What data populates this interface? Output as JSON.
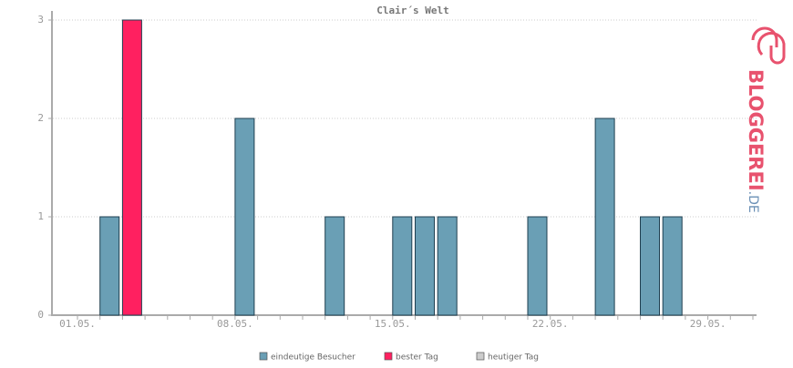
{
  "chart_data": {
    "type": "bar",
    "title": "Clair´s Welt",
    "categories": [
      "01.05.",
      null,
      null,
      null,
      null,
      null,
      null,
      "08.05.",
      null,
      null,
      null,
      null,
      null,
      null,
      "15.05.",
      null,
      null,
      null,
      null,
      null,
      null,
      "22.05.",
      null,
      null,
      null,
      null,
      null,
      null,
      "29.05.",
      null,
      null
    ],
    "series": [
      {
        "name": "eindeutige Besucher",
        "color": "#6a9fb5",
        "values": [
          0,
          1,
          null,
          0,
          0,
          0,
          0,
          2,
          0,
          0,
          0,
          1,
          0,
          0,
          1,
          1,
          1,
          0,
          0,
          0,
          1,
          0,
          0,
          2,
          0,
          1,
          1,
          0,
          0,
          0,
          0
        ]
      },
      {
        "name": "bester Tag",
        "color": "#ff2060",
        "values": [
          null,
          null,
          3,
          null,
          null,
          null,
          null,
          null,
          null,
          null,
          null,
          null,
          null,
          null,
          null,
          null,
          null,
          null,
          null,
          null,
          null,
          null,
          null,
          null,
          null,
          null,
          null,
          null,
          null,
          null,
          null
        ]
      },
      {
        "name": "heutiger Tag",
        "color": "#cccccc",
        "values": [
          null,
          null,
          null,
          null,
          null,
          null,
          null,
          null,
          null,
          null,
          null,
          null,
          null,
          null,
          null,
          null,
          null,
          null,
          null,
          null,
          null,
          null,
          null,
          null,
          null,
          null,
          null,
          null,
          null,
          null,
          null
        ]
      }
    ],
    "ylim": [
      0,
      3
    ],
    "yticks": [
      0,
      1,
      2,
      3
    ],
    "grid": true,
    "logo": {
      "name": "BLOGGEREI",
      "tld": ".DE"
    }
  }
}
